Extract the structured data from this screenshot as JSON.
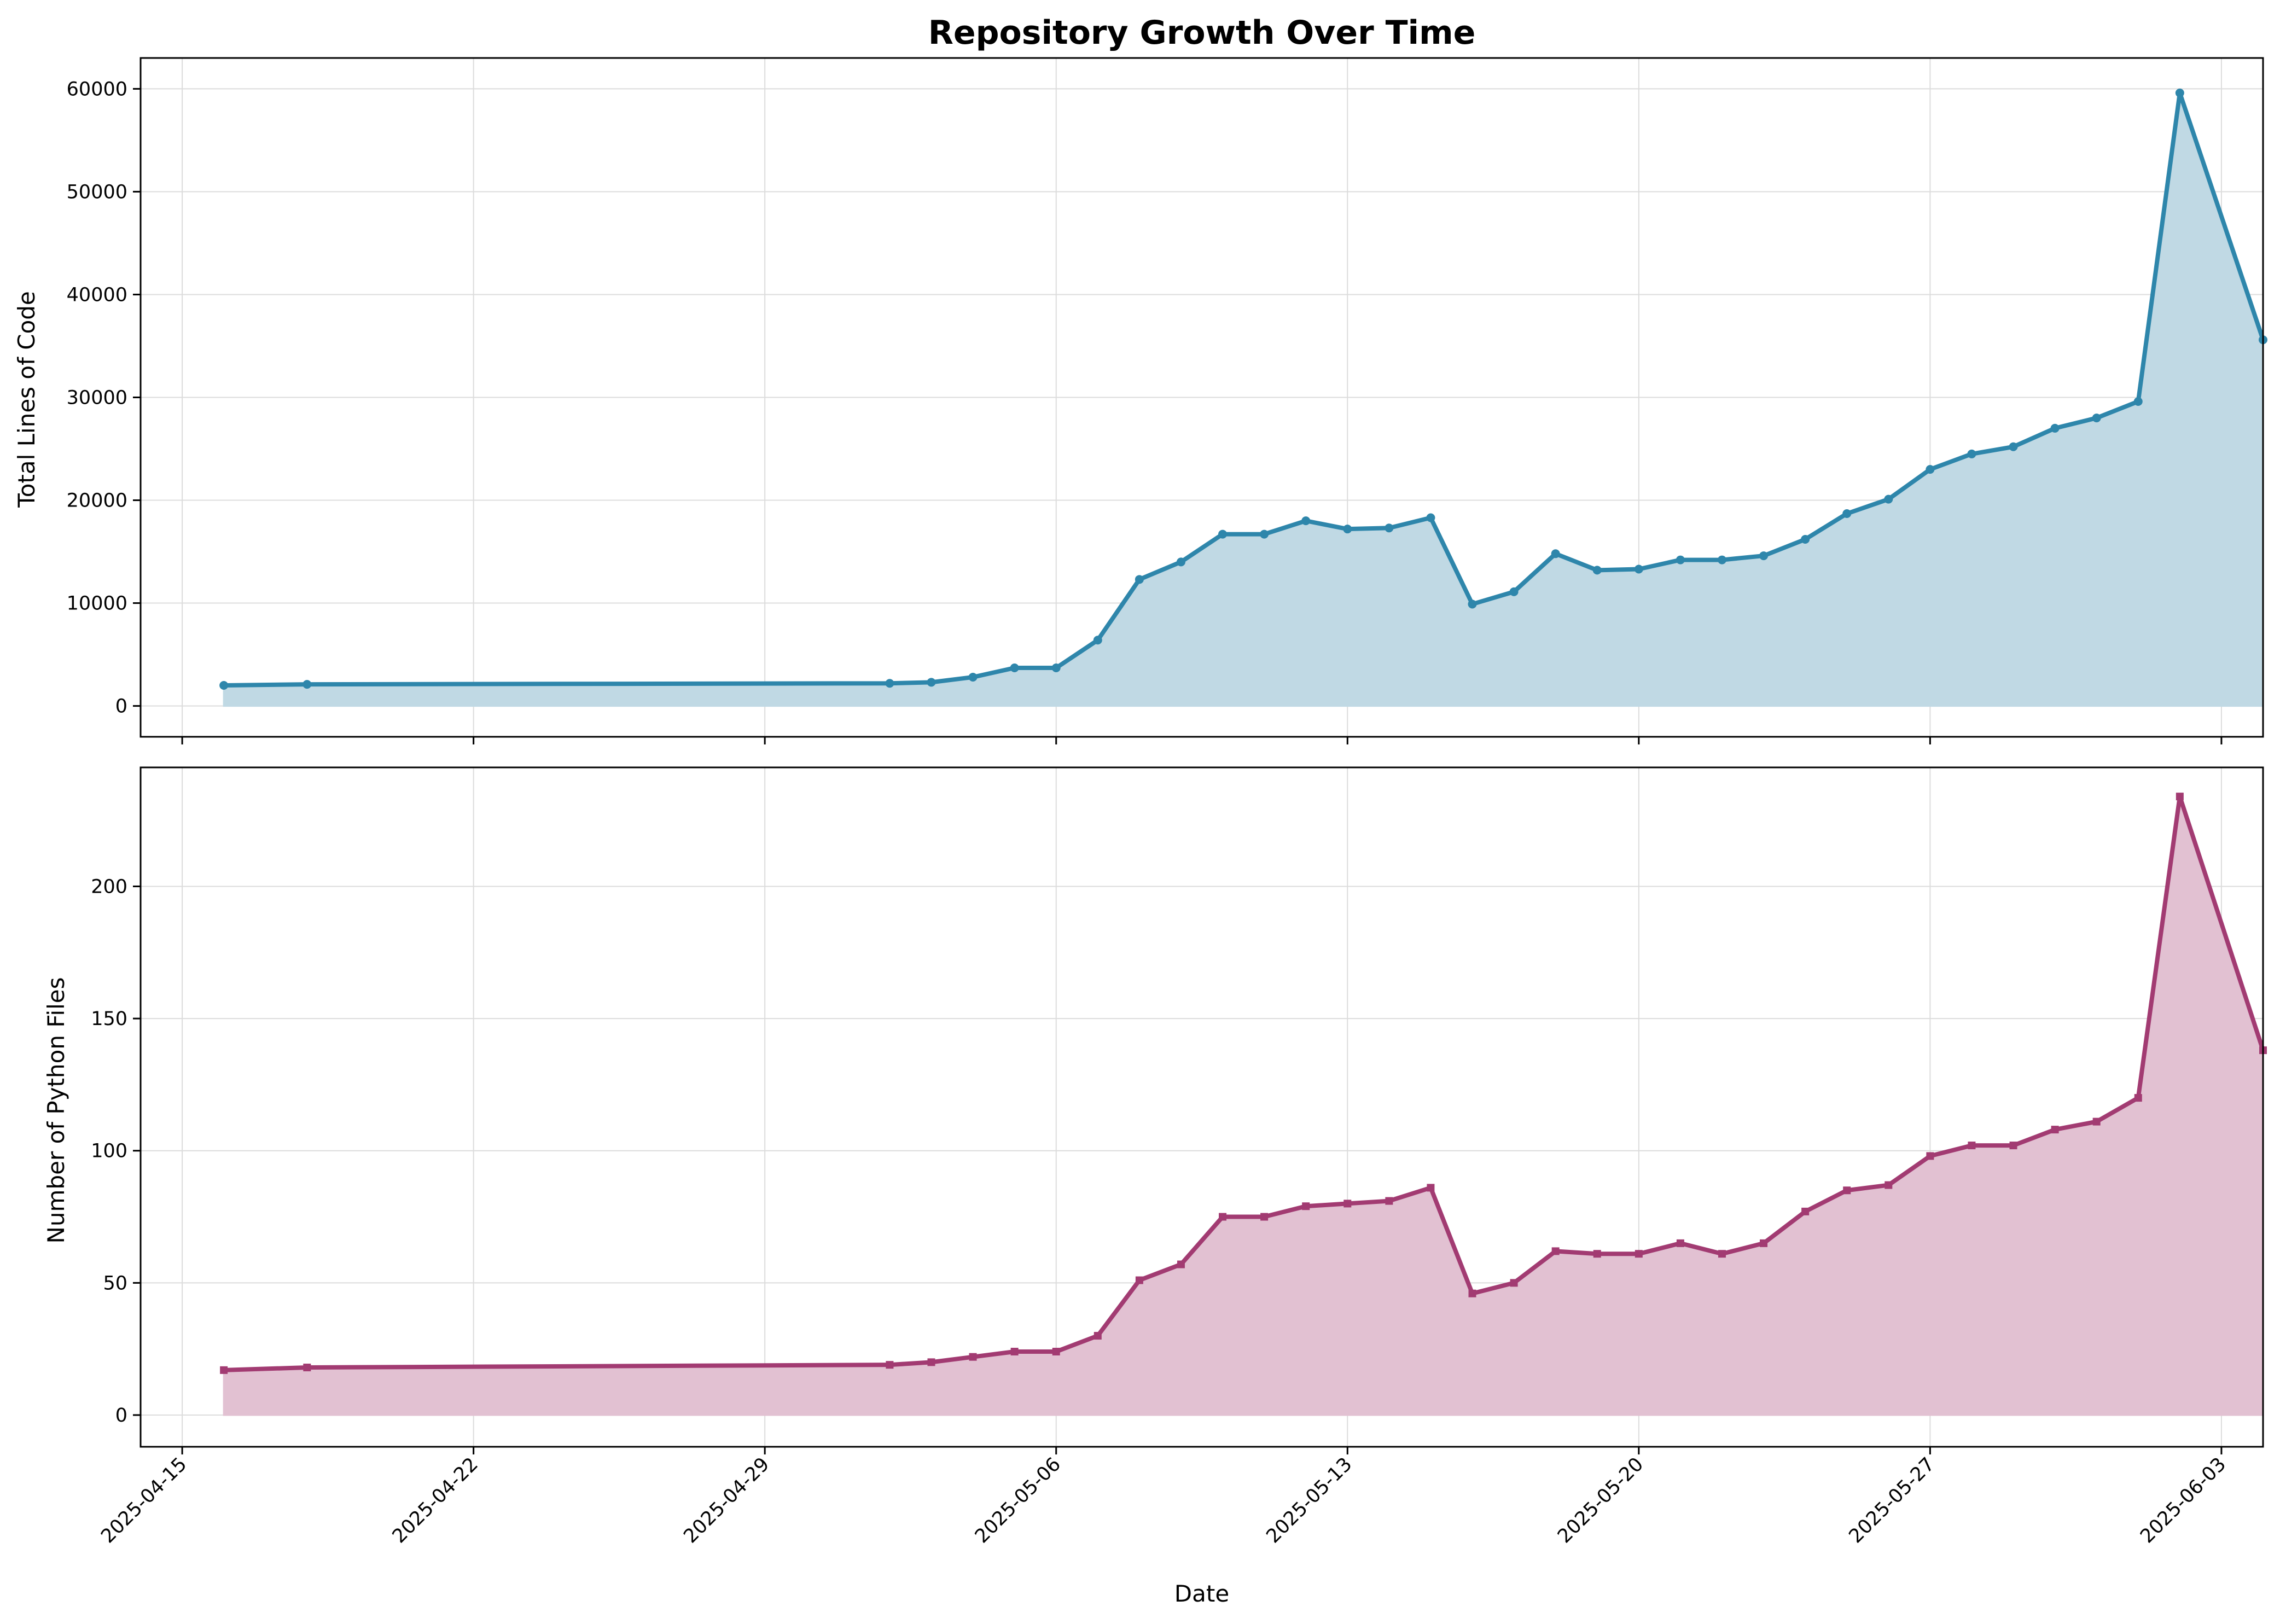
{
  "chart_data": {
    "title": "Repository Growth Over Time",
    "xlabel": "Date",
    "x_ticks": [
      "2025-04-15",
      "2025-04-22",
      "2025-04-29",
      "2025-05-06",
      "2025-05-13",
      "2025-05-20",
      "2025-05-27",
      "2025-06-03"
    ],
    "x_range": [
      "2025-04-14",
      "2025-06-04"
    ],
    "grid": true,
    "dates": [
      "2025-04-16",
      "2025-04-18",
      "2025-05-02",
      "2025-05-03",
      "2025-05-04",
      "2025-05-05",
      "2025-05-06",
      "2025-05-07",
      "2025-05-08",
      "2025-05-09",
      "2025-05-10",
      "2025-05-11",
      "2025-05-12",
      "2025-05-13",
      "2025-05-14",
      "2025-05-15",
      "2025-05-16",
      "2025-05-17",
      "2025-05-18",
      "2025-05-19",
      "2025-05-20",
      "2025-05-21",
      "2025-05-22",
      "2025-05-23",
      "2025-05-24",
      "2025-05-25",
      "2025-05-26",
      "2025-05-27",
      "2025-05-28",
      "2025-05-29",
      "2025-05-30",
      "2025-05-31",
      "2025-06-01",
      "2025-06-02",
      "2025-06-04"
    ],
    "panels": [
      {
        "type": "area",
        "ylabel": "Total Lines of Code",
        "ylim": [
          -3000,
          63000
        ],
        "y_ticks": [
          0,
          10000,
          20000,
          30000,
          40000,
          50000,
          60000
        ],
        "color": "#2e86ab",
        "fill": "#c0d9e4",
        "marker": "circle",
        "values": [
          2000,
          2100,
          2200,
          2300,
          2800,
          3700,
          3700,
          6400,
          12300,
          14000,
          16700,
          16700,
          18000,
          17200,
          17300,
          18300,
          9900,
          11100,
          14800,
          13200,
          13300,
          14200,
          14200,
          14600,
          16200,
          18700,
          20100,
          23000,
          24500,
          25200,
          27000,
          28000,
          29600,
          59600,
          35600
        ]
      },
      {
        "type": "area",
        "ylabel": "Number of Python Files",
        "ylim": [
          -12,
          245
        ],
        "y_ticks": [
          0,
          50,
          100,
          150,
          200
        ],
        "color": "#a23b72",
        "fill": "#e2c1d2",
        "marker": "square",
        "values": [
          17,
          18,
          19,
          20,
          22,
          24,
          24,
          30,
          51,
          57,
          75,
          75,
          79,
          80,
          81,
          86,
          46,
          50,
          62,
          61,
          61,
          65,
          61,
          65,
          77,
          85,
          87,
          98,
          102,
          102,
          108,
          111,
          120,
          234,
          138
        ]
      }
    ]
  }
}
